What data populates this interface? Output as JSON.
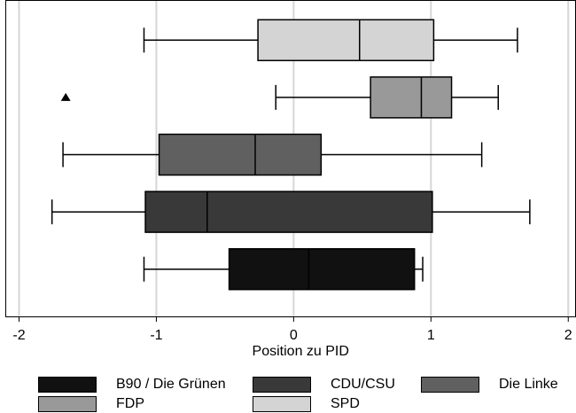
{
  "chart_data": {
    "type": "boxplot",
    "orientation": "horizontal",
    "xlabel": "Position zu PID",
    "xlim": [
      -2.1,
      2.05
    ],
    "xticks": [
      -2,
      -1,
      0,
      1,
      2
    ],
    "xtick_labels": [
      "-2",
      "-1",
      "0",
      "1",
      "2"
    ],
    "grid": true,
    "legend_position": "bottom",
    "series": [
      {
        "name": "SPD",
        "color": "#d4d4d4",
        "whisker_low": -1.09,
        "q1": -0.26,
        "median": 0.48,
        "q3": 1.02,
        "whisker_high": 1.63,
        "outliers": []
      },
      {
        "name": "FDP",
        "color": "#999999",
        "whisker_low": -0.13,
        "q1": 0.56,
        "median": 0.93,
        "q3": 1.15,
        "whisker_high": 1.49,
        "outliers": [
          -1.66
        ]
      },
      {
        "name": "Die Linke",
        "color": "#606060",
        "whisker_low": -1.68,
        "q1": -0.98,
        "median": -0.28,
        "q3": 0.2,
        "whisker_high": 1.37,
        "outliers": []
      },
      {
        "name": "CDU/CSU",
        "color": "#393939",
        "whisker_low": -1.76,
        "q1": -1.08,
        "median": -0.63,
        "q3": 1.01,
        "whisker_high": 1.72,
        "outliers": []
      },
      {
        "name": "B90 / Die Grünen",
        "color": "#111111",
        "whisker_low": -1.09,
        "q1": -0.47,
        "median": 0.11,
        "q3": 0.88,
        "whisker_high": 0.94,
        "outliers": []
      }
    ],
    "legend": [
      {
        "label": "B90 / Die Grünen",
        "color": "#111111"
      },
      {
        "label": "CDU/CSU",
        "color": "#393939"
      },
      {
        "label": "Die Linke",
        "color": "#606060"
      },
      {
        "label": "FDP",
        "color": "#999999"
      },
      {
        "label": "SPD",
        "color": "#d4d4d4"
      }
    ]
  }
}
